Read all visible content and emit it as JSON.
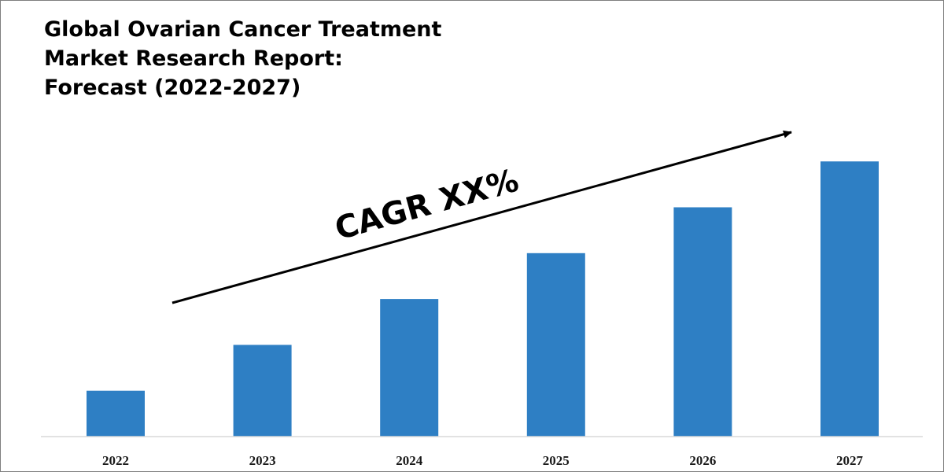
{
  "title_lines": [
    "Global Ovarian Cancer Treatment",
    "Market Research Report:",
    "Forecast (2022-2027)"
  ],
  "annotation": "CAGR XX%",
  "colors": {
    "bar": "#2e7fc4",
    "axis": "#d9d9d9",
    "arrow": "#000000"
  },
  "chart_data": {
    "type": "bar",
    "title": "Global Ovarian Cancer Treatment Market Research Report: Forecast (2022-2027)",
    "categories": [
      "2022",
      "2023",
      "2024",
      "2025",
      "2026",
      "2027"
    ],
    "values": [
      10,
      20,
      30,
      40,
      50,
      60
    ],
    "ylim": [
      0,
      65
    ],
    "xlabel": "",
    "ylabel": "",
    "y_axis_visible": false,
    "grid": false,
    "legend": "none",
    "annotations": [
      {
        "text": "CAGR XX%",
        "type": "trend-arrow",
        "from_category": "2023",
        "to_category": "2026"
      }
    ]
  }
}
